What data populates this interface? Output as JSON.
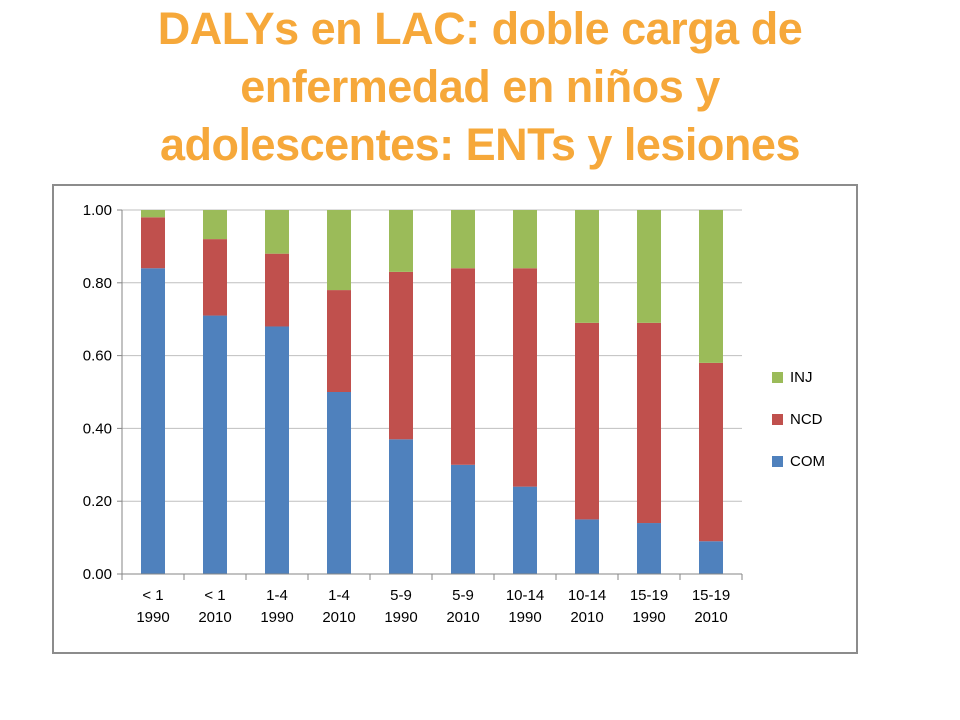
{
  "title_lines": [
    "DALYs en LAC:  doble carga de",
    "enfermedad en niños y",
    "adolescentes: ENTs y lesiones"
  ],
  "colors": {
    "title": "#F6A83A",
    "COM": "#4F81BD",
    "NCD": "#C0504D",
    "INJ": "#9BBB59"
  },
  "chart_data": {
    "type": "bar",
    "stacked": true,
    "categories": [
      [
        "< 1",
        "1990"
      ],
      [
        "< 1",
        "2010"
      ],
      [
        "1-4",
        "1990"
      ],
      [
        "1-4",
        "2010"
      ],
      [
        "5-9",
        "1990"
      ],
      [
        "5-9",
        "2010"
      ],
      [
        "10-14",
        "1990"
      ],
      [
        "10-14",
        "2010"
      ],
      [
        "15-19",
        "1990"
      ],
      [
        "15-19",
        "2010"
      ]
    ],
    "series": [
      {
        "name": "COM",
        "values": [
          0.84,
          0.71,
          0.68,
          0.5,
          0.37,
          0.3,
          0.24,
          0.15,
          0.14,
          0.09
        ]
      },
      {
        "name": "NCD",
        "values": [
          0.14,
          0.21,
          0.2,
          0.28,
          0.46,
          0.54,
          0.6,
          0.54,
          0.55,
          0.49
        ]
      },
      {
        "name": "INJ",
        "values": [
          0.02,
          0.08,
          0.12,
          0.22,
          0.17,
          0.16,
          0.16,
          0.31,
          0.31,
          0.42
        ]
      }
    ],
    "ylim": [
      0,
      1
    ],
    "yticks": [
      "0.00",
      "0.20",
      "0.40",
      "0.60",
      "0.80",
      "1.00"
    ],
    "legend": {
      "placement": "right",
      "order": [
        "INJ",
        "NCD",
        "COM"
      ]
    },
    "grid": true
  }
}
